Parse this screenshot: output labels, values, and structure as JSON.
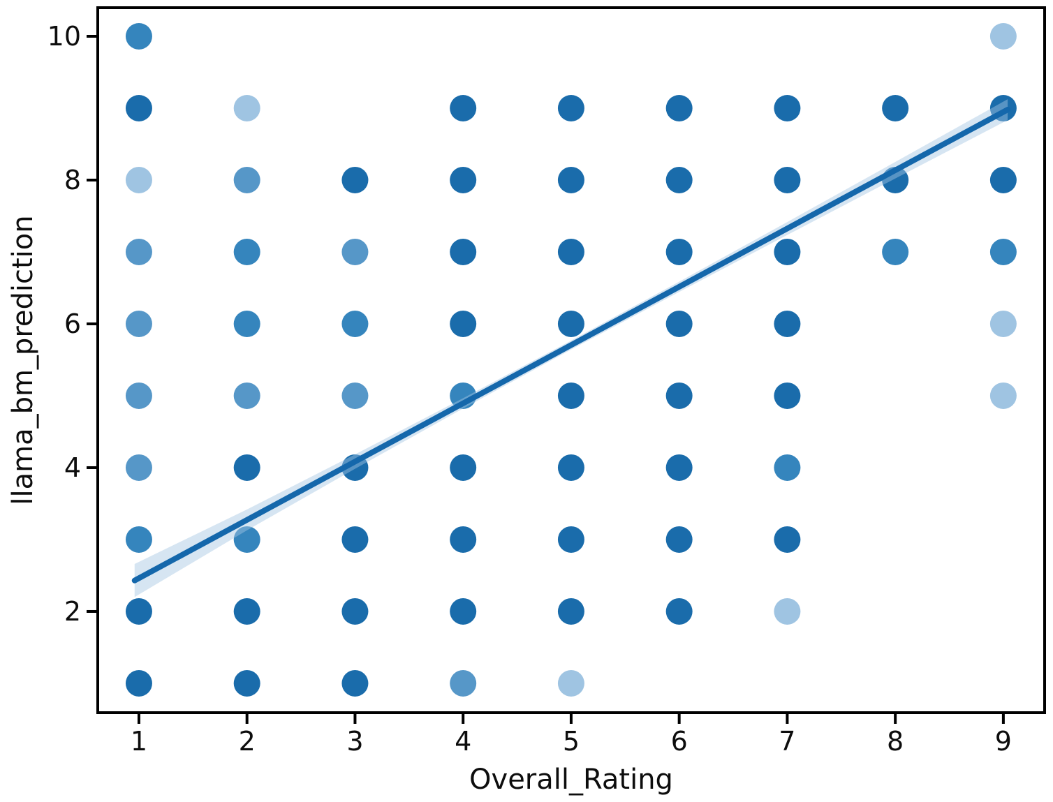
{
  "chart_data": {
    "type": "scatter",
    "title": "",
    "xlabel": "Overall_Rating",
    "ylabel": "llama_bm_prediction",
    "x_ticks": [
      "1",
      "2",
      "3",
      "4",
      "5",
      "6",
      "7",
      "8",
      "9"
    ],
    "y_ticks": [
      "2",
      "4",
      "6",
      "8",
      "10"
    ],
    "xlim": [
      0.619,
      9.382
    ],
    "ylim": [
      0.592,
      10.398
    ],
    "grid": false,
    "legend": "none",
    "marker_radius_px": 19,
    "shade_colors": {
      "light": "#9fc4e2",
      "medium": "#5697c8",
      "strong": "#3585bd",
      "dark": "#1a6cab"
    },
    "line_color": "#1467ab",
    "band_color": "rgba(163,197,227,0.45)",
    "axis_color": "#000000",
    "regression": {
      "x1": 0.96,
      "y1": 2.43,
      "x2": 9.04,
      "y2": 8.98
    },
    "band": [
      {
        "x": 0.96,
        "hw": 0.23
      },
      {
        "x": 2.0,
        "hw": 0.145
      },
      {
        "x": 3.0,
        "hw": 0.1
      },
      {
        "x": 4.0,
        "hw": 0.072
      },
      {
        "x": 5.0,
        "hw": 0.062
      },
      {
        "x": 6.0,
        "hw": 0.072
      },
      {
        "x": 7.0,
        "hw": 0.09
      },
      {
        "x": 8.0,
        "hw": 0.115
      },
      {
        "x": 9.04,
        "hw": 0.145
      }
    ],
    "points": [
      {
        "x": 1,
        "y": 10,
        "shade": "strong"
      },
      {
        "x": 1,
        "y": 9,
        "shade": "dark"
      },
      {
        "x": 1,
        "y": 8,
        "shade": "light"
      },
      {
        "x": 1,
        "y": 7,
        "shade": "medium"
      },
      {
        "x": 1,
        "y": 6,
        "shade": "medium"
      },
      {
        "x": 1,
        "y": 5,
        "shade": "medium"
      },
      {
        "x": 1,
        "y": 4,
        "shade": "medium"
      },
      {
        "x": 1,
        "y": 3,
        "shade": "strong"
      },
      {
        "x": 1,
        "y": 2,
        "shade": "dark"
      },
      {
        "x": 1,
        "y": 1,
        "shade": "dark"
      },
      {
        "x": 2,
        "y": 9,
        "shade": "light"
      },
      {
        "x": 2,
        "y": 8,
        "shade": "medium"
      },
      {
        "x": 2,
        "y": 7,
        "shade": "strong"
      },
      {
        "x": 2,
        "y": 6,
        "shade": "strong"
      },
      {
        "x": 2,
        "y": 5,
        "shade": "medium"
      },
      {
        "x": 2,
        "y": 4,
        "shade": "dark"
      },
      {
        "x": 2,
        "y": 3,
        "shade": "strong"
      },
      {
        "x": 2,
        "y": 2,
        "shade": "dark"
      },
      {
        "x": 2,
        "y": 1,
        "shade": "dark"
      },
      {
        "x": 3,
        "y": 8,
        "shade": "dark"
      },
      {
        "x": 3,
        "y": 7,
        "shade": "medium"
      },
      {
        "x": 3,
        "y": 6,
        "shade": "strong"
      },
      {
        "x": 3,
        "y": 5,
        "shade": "medium"
      },
      {
        "x": 3,
        "y": 4,
        "shade": "dark"
      },
      {
        "x": 3,
        "y": 3,
        "shade": "dark"
      },
      {
        "x": 3,
        "y": 2,
        "shade": "dark"
      },
      {
        "x": 3,
        "y": 1,
        "shade": "dark"
      },
      {
        "x": 4,
        "y": 9,
        "shade": "dark"
      },
      {
        "x": 4,
        "y": 8,
        "shade": "dark"
      },
      {
        "x": 4,
        "y": 7,
        "shade": "dark"
      },
      {
        "x": 4,
        "y": 6,
        "shade": "dark"
      },
      {
        "x": 4,
        "y": 5,
        "shade": "strong"
      },
      {
        "x": 4,
        "y": 4,
        "shade": "dark"
      },
      {
        "x": 4,
        "y": 3,
        "shade": "dark"
      },
      {
        "x": 4,
        "y": 2,
        "shade": "dark"
      },
      {
        "x": 4,
        "y": 1,
        "shade": "medium"
      },
      {
        "x": 5,
        "y": 9,
        "shade": "dark"
      },
      {
        "x": 5,
        "y": 8,
        "shade": "dark"
      },
      {
        "x": 5,
        "y": 7,
        "shade": "dark"
      },
      {
        "x": 5,
        "y": 6,
        "shade": "dark"
      },
      {
        "x": 5,
        "y": 5,
        "shade": "dark"
      },
      {
        "x": 5,
        "y": 4,
        "shade": "dark"
      },
      {
        "x": 5,
        "y": 3,
        "shade": "dark"
      },
      {
        "x": 5,
        "y": 2,
        "shade": "dark"
      },
      {
        "x": 5,
        "y": 1,
        "shade": "light"
      },
      {
        "x": 6,
        "y": 9,
        "shade": "dark"
      },
      {
        "x": 6,
        "y": 8,
        "shade": "dark"
      },
      {
        "x": 6,
        "y": 7,
        "shade": "dark"
      },
      {
        "x": 6,
        "y": 6,
        "shade": "dark"
      },
      {
        "x": 6,
        "y": 5,
        "shade": "dark"
      },
      {
        "x": 6,
        "y": 4,
        "shade": "dark"
      },
      {
        "x": 6,
        "y": 3,
        "shade": "dark"
      },
      {
        "x": 6,
        "y": 2,
        "shade": "dark"
      },
      {
        "x": 7,
        "y": 9,
        "shade": "dark"
      },
      {
        "x": 7,
        "y": 8,
        "shade": "dark"
      },
      {
        "x": 7,
        "y": 7,
        "shade": "dark"
      },
      {
        "x": 7,
        "y": 6,
        "shade": "dark"
      },
      {
        "x": 7,
        "y": 5,
        "shade": "dark"
      },
      {
        "x": 7,
        "y": 4,
        "shade": "strong"
      },
      {
        "x": 7,
        "y": 3,
        "shade": "dark"
      },
      {
        "x": 7,
        "y": 2,
        "shade": "light"
      },
      {
        "x": 8,
        "y": 9,
        "shade": "dark"
      },
      {
        "x": 8,
        "y": 8,
        "shade": "dark"
      },
      {
        "x": 8,
        "y": 7,
        "shade": "strong"
      },
      {
        "x": 9,
        "y": 10,
        "shade": "light"
      },
      {
        "x": 9,
        "y": 9,
        "shade": "dark"
      },
      {
        "x": 9,
        "y": 8,
        "shade": "dark"
      },
      {
        "x": 9,
        "y": 7,
        "shade": "strong"
      },
      {
        "x": 9,
        "y": 6,
        "shade": "light"
      },
      {
        "x": 9,
        "y": 5,
        "shade": "light"
      }
    ]
  }
}
